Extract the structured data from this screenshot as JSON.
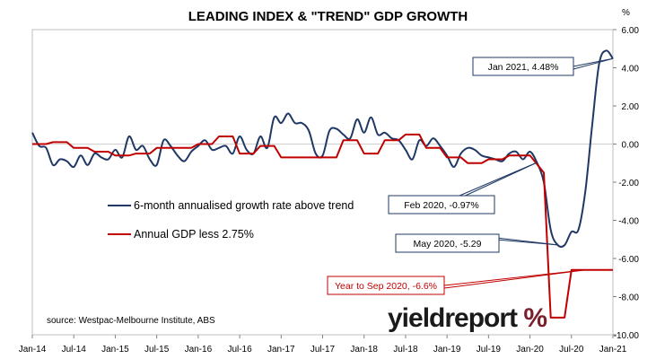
{
  "chart_data": {
    "type": "line",
    "title": "LEADING INDEX & \"TREND\" GDP GROWTH",
    "y_unit": "%",
    "source": "source: Westpac-Melbourne Institute, ABS",
    "logo": {
      "text": "yieldreport",
      "symbol": "%"
    },
    "xlim": [
      "2014-01",
      "2021-01"
    ],
    "ylim": [
      -10,
      6
    ],
    "y_ticks": [
      "6.00",
      "4.00",
      "2.00",
      "0.00",
      "-2.00",
      "-4.00",
      "-6.00",
      "-8.00",
      "-10.00"
    ],
    "x_ticks": [
      "Jan-14",
      "Jul-14",
      "Jan-15",
      "Jul-15",
      "Jan-16",
      "Jul-16",
      "Jan-17",
      "Jul-17",
      "Jan-18",
      "Jul-18",
      "Jan-19",
      "Jul-19",
      "Jan-20",
      "Jul-20",
      "Jan-21"
    ],
    "legend": [
      {
        "label": "6-month annualised growth rate above trend",
        "color": "#1f3864"
      },
      {
        "label": "Annual GDP less 2.75%",
        "color": "#c00000"
      }
    ],
    "series": [
      {
        "name": "6-month annualised growth rate above trend",
        "color": "#1f3864",
        "points": [
          [
            "2014-01",
            0.6
          ],
          [
            "2014-02",
            -0.1
          ],
          [
            "2014-03",
            -0.2
          ],
          [
            "2014-04",
            -1.1
          ],
          [
            "2014-05",
            -0.8
          ],
          [
            "2014-06",
            -0.9
          ],
          [
            "2014-07",
            -1.2
          ],
          [
            "2014-08",
            -0.6
          ],
          [
            "2014-09",
            -1.1
          ],
          [
            "2014-10",
            -0.5
          ],
          [
            "2014-11",
            -0.7
          ],
          [
            "2014-12",
            -0.8
          ],
          [
            "2015-01",
            -0.3
          ],
          [
            "2015-02",
            -0.7
          ],
          [
            "2015-03",
            0.4
          ],
          [
            "2015-04",
            -0.3
          ],
          [
            "2015-05",
            -0.1
          ],
          [
            "2015-06",
            -0.8
          ],
          [
            "2015-07",
            -1.1
          ],
          [
            "2015-08",
            0.2
          ],
          [
            "2015-09",
            -0.1
          ],
          [
            "2015-10",
            -0.6
          ],
          [
            "2015-11",
            -0.9
          ],
          [
            "2015-12",
            -0.4
          ],
          [
            "2016-01",
            -0.1
          ],
          [
            "2016-02",
            0.2
          ],
          [
            "2016-03",
            -0.3
          ],
          [
            "2016-04",
            -0.2
          ],
          [
            "2016-05",
            -0.1
          ],
          [
            "2016-06",
            -0.5
          ],
          [
            "2016-07",
            0.4
          ],
          [
            "2016-08",
            -0.3
          ],
          [
            "2016-09",
            -0.5
          ],
          [
            "2016-10",
            0.4
          ],
          [
            "2016-11",
            -0.2
          ],
          [
            "2016-12",
            1.4
          ],
          [
            "2017-01",
            1.1
          ],
          [
            "2017-02",
            1.6
          ],
          [
            "2017-03",
            1.1
          ],
          [
            "2017-04",
            1.1
          ],
          [
            "2017-05",
            0.7
          ],
          [
            "2017-06",
            -0.5
          ],
          [
            "2017-07",
            -0.6
          ],
          [
            "2017-08",
            0.7
          ],
          [
            "2017-09",
            0.8
          ],
          [
            "2017-10",
            0.5
          ],
          [
            "2017-11",
            0.3
          ],
          [
            "2017-12",
            1.3
          ],
          [
            "2018-01",
            0.6
          ],
          [
            "2018-02",
            1.4
          ],
          [
            "2018-03",
            0.5
          ],
          [
            "2018-04",
            0.6
          ],
          [
            "2018-05",
            0.3
          ],
          [
            "2018-06",
            0.2
          ],
          [
            "2018-07",
            -0.3
          ],
          [
            "2018-08",
            -0.8
          ],
          [
            "2018-09",
            0.2
          ],
          [
            "2018-10",
            -0.1
          ],
          [
            "2018-11",
            0.3
          ],
          [
            "2018-12",
            -0.1
          ],
          [
            "2019-01",
            -0.6
          ],
          [
            "2019-02",
            -1.2
          ],
          [
            "2019-03",
            -0.5
          ],
          [
            "2019-04",
            -0.2
          ],
          [
            "2019-05",
            -0.3
          ],
          [
            "2019-06",
            -0.6
          ],
          [
            "2019-07",
            -0.7
          ],
          [
            "2019-08",
            -0.8
          ],
          [
            "2019-09",
            -0.9
          ],
          [
            "2019-10",
            -0.5
          ],
          [
            "2019-11",
            -0.4
          ],
          [
            "2019-12",
            -0.8
          ],
          [
            "2020-01",
            -0.4
          ],
          [
            "2020-02",
            -0.97
          ],
          [
            "2020-03",
            -2.0
          ],
          [
            "2020-04",
            -4.5
          ],
          [
            "2020-05",
            -5.29
          ],
          [
            "2020-06",
            -5.3
          ],
          [
            "2020-07",
            -4.6
          ],
          [
            "2020-08",
            -4.5
          ],
          [
            "2020-09",
            -2.5
          ],
          [
            "2020-10",
            1.0
          ],
          [
            "2020-11",
            4.2
          ],
          [
            "2020-12",
            4.9
          ],
          [
            "2021-01",
            4.48
          ]
        ]
      },
      {
        "name": "Annual GDP less 2.75%",
        "color": "#c00000",
        "points": [
          [
            "2014-01",
            0.0
          ],
          [
            "2014-03",
            0.0
          ],
          [
            "2014-04",
            0.1
          ],
          [
            "2014-06",
            0.1
          ],
          [
            "2014-07",
            -0.2
          ],
          [
            "2014-09",
            -0.2
          ],
          [
            "2014-10",
            -0.4
          ],
          [
            "2014-12",
            -0.4
          ],
          [
            "2015-01",
            -0.6
          ],
          [
            "2015-03",
            -0.6
          ],
          [
            "2015-04",
            -0.5
          ],
          [
            "2015-06",
            -0.5
          ],
          [
            "2015-07",
            -0.2
          ],
          [
            "2015-09",
            -0.2
          ],
          [
            "2015-10",
            -0.2
          ],
          [
            "2015-12",
            -0.2
          ],
          [
            "2016-01",
            0.0
          ],
          [
            "2016-03",
            0.0
          ],
          [
            "2016-04",
            0.4
          ],
          [
            "2016-06",
            0.4
          ],
          [
            "2016-07",
            -0.5
          ],
          [
            "2016-09",
            -0.5
          ],
          [
            "2016-10",
            -0.1
          ],
          [
            "2016-12",
            -0.1
          ],
          [
            "2017-01",
            -0.7
          ],
          [
            "2017-03",
            -0.7
          ],
          [
            "2017-04",
            -0.7
          ],
          [
            "2017-06",
            -0.7
          ],
          [
            "2017-07",
            -0.7
          ],
          [
            "2017-09",
            -0.7
          ],
          [
            "2017-10",
            0.2
          ],
          [
            "2017-12",
            0.2
          ],
          [
            "2018-01",
            -0.5
          ],
          [
            "2018-03",
            -0.5
          ],
          [
            "2018-04",
            0.2
          ],
          [
            "2018-06",
            0.2
          ],
          [
            "2018-07",
            0.5
          ],
          [
            "2018-09",
            0.5
          ],
          [
            "2018-10",
            -0.2
          ],
          [
            "2018-12",
            -0.2
          ],
          [
            "2019-01",
            -0.7
          ],
          [
            "2019-03",
            -0.7
          ],
          [
            "2019-04",
            -1.0
          ],
          [
            "2019-06",
            -1.0
          ],
          [
            "2019-07",
            -0.8
          ],
          [
            "2019-09",
            -0.8
          ],
          [
            "2019-10",
            -0.6
          ],
          [
            "2019-12",
            -0.6
          ],
          [
            "2020-01",
            -0.6
          ],
          [
            "2020-03",
            -1.5
          ],
          [
            "2020-04",
            -9.1
          ],
          [
            "2020-06",
            -9.1
          ],
          [
            "2020-07",
            -6.6
          ],
          [
            "2020-09",
            -6.6
          ],
          [
            "2020-10",
            -6.6
          ],
          [
            "2020-12",
            -6.6
          ],
          [
            "2021-01",
            -6.6
          ]
        ]
      }
    ],
    "annotations": [
      {
        "text": "Jan 2021, 4.48%",
        "color": "#1f3864",
        "point": [
          "2021-01",
          4.48
        ]
      },
      {
        "text": "Feb 2020, -0.97%",
        "color": "#1f3864",
        "point": [
          "2020-02",
          -0.97
        ]
      },
      {
        "text": "May 2020, -5.29",
        "color": "#1f3864",
        "point": [
          "2020-05",
          -5.29
        ]
      },
      {
        "text": "Year to Sep 2020, -6.6%",
        "color": "#c00000",
        "point": [
          "2020-09",
          -6.6
        ]
      }
    ]
  }
}
